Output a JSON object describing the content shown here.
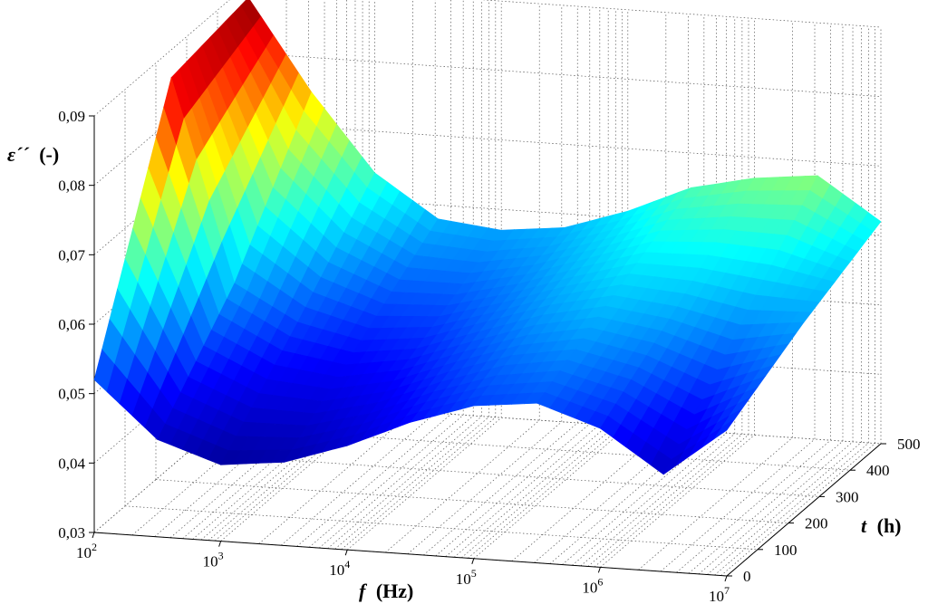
{
  "chart_data": {
    "type": "surface",
    "title": "",
    "xlabel": {
      "var": "f",
      "unit": "(Hz)"
    },
    "ylabel": {
      "var": "t",
      "unit": "(h)"
    },
    "zlabel": {
      "var": "ε´´",
      "unit": "(-)"
    },
    "x_scale": "log",
    "xlim": [
      100,
      10000000
    ],
    "x_ticks": [
      {
        "base": "10",
        "exp": "2"
      },
      {
        "base": "10",
        "exp": "3"
      },
      {
        "base": "10",
        "exp": "4"
      },
      {
        "base": "10",
        "exp": "5"
      },
      {
        "base": "10",
        "exp": "6"
      },
      {
        "base": "10",
        "exp": "7"
      }
    ],
    "ylim": [
      0,
      500
    ],
    "y_ticks": [
      "0",
      "100",
      "200",
      "300",
      "400",
      "500"
    ],
    "zlim": [
      0.03,
      0.09
    ],
    "z_ticks": [
      "0,03",
      "0,04",
      "0,05",
      "0,06",
      "0,07",
      "0,08",
      "0,09"
    ],
    "grid": true,
    "colormap": [
      "#00008f",
      "#0000ff",
      "#00ffff",
      "#ffff00",
      "#ff0000",
      "#800000"
    ],
    "surface": {
      "x_log10": [
        2.0,
        2.5,
        3.0,
        3.5,
        4.0,
        4.5,
        5.0,
        5.5,
        6.0,
        6.5,
        7.0
      ],
      "t_h": [
        0,
        250,
        500
      ],
      "z": [
        [
          0.052,
          0.044,
          0.041,
          0.042,
          0.045,
          0.049,
          0.052,
          0.053,
          0.05,
          0.044,
          0.051
        ],
        [
          0.086,
          0.057,
          0.052,
          0.05,
          0.051,
          0.054,
          0.057,
          0.059,
          0.058,
          0.056,
          0.057
        ],
        [
          0.088,
          0.075,
          0.064,
          0.058,
          0.057,
          0.058,
          0.061,
          0.065,
          0.067,
          0.068,
          0.062
        ]
      ]
    }
  }
}
